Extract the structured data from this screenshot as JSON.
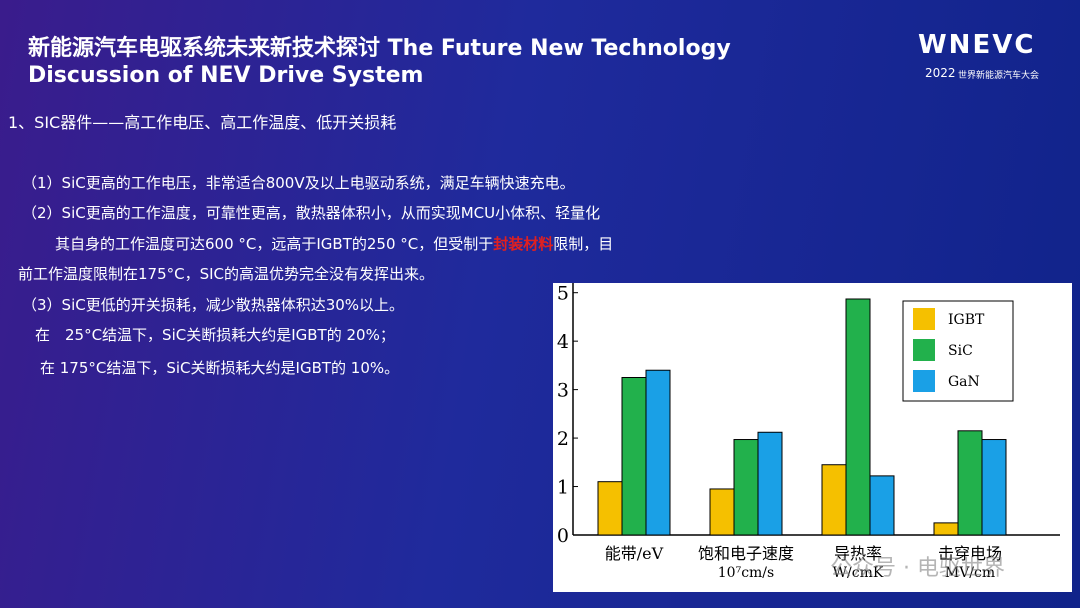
{
  "header": {
    "title_lines": [
      "新能源汽车电驱系统未来新技术探讨 The Future New Technology",
      "Discussion  of  NEV Drive System"
    ],
    "logo": {
      "brand": "WNEVC",
      "year": "2022",
      "event": "世界新能源汽车大会"
    }
  },
  "subtitle": "1、SIC器件——高工作电压、高工作温度、低开关损耗",
  "body": {
    "lines": [
      "（1）SiC更高的工作电压，非常适合800V及以上电驱动系统，满足车辆快速充电。",
      "（2）SiC更高的工作温度，可靠性更高，散热器体积小，从而实现MCU小体积、轻量化"
    ],
    "line3": {
      "before": "其自身的工作温度可达600 °C，远高于IGBT的250 °C，但受制于",
      "highlight": "封装材料",
      "after": "限制，目"
    },
    "more_lines": [
      "前工作温度限制在175°C，SIC的高温优势完全没有发挥出来。",
      "（3）SiC更低的开关损耗，减少散热器体积达30%以上。",
      "在　25°C结温下，SiC关断损耗大约是IGBT的 20%；",
      "在 175°C结温下，SiC关断损耗大约是IGBT的 10%。"
    ]
  },
  "watermark": "公众号 · 电驱世界",
  "chart_data": {
    "type": "bar",
    "categories": [
      [
        "能带/eV"
      ],
      [
        "饱和电子速度",
        "10⁷cm/s"
      ],
      [
        "导热率",
        "W/cmK"
      ],
      [
        "击穿电场",
        "MV/cm"
      ]
    ],
    "series": [
      {
        "name": "IGBT",
        "color": "#f5c000",
        "values": [
          1.1,
          0.95,
          1.45,
          0.25
        ]
      },
      {
        "name": "SiC",
        "color": "#22b14c",
        "values": [
          3.25,
          1.97,
          4.87,
          2.15
        ]
      },
      {
        "name": "GaN",
        "color": "#1aa0e6",
        "values": [
          3.4,
          2.12,
          1.22,
          1.97
        ]
      }
    ],
    "ylim": [
      0,
      5.2
    ],
    "yticks": [
      0,
      1,
      2,
      3,
      4,
      5
    ],
    "legend": "upper right"
  }
}
